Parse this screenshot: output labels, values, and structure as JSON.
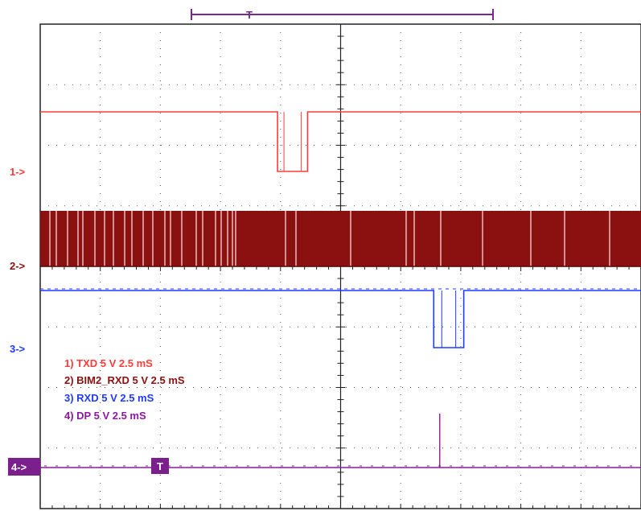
{
  "chart_data": {
    "type": "line",
    "title": "",
    "grid": true,
    "x_divisions": 10,
    "y_divisions": 8,
    "time_per_div": "2.5 mS",
    "channels": [
      {
        "id": 1,
        "marker": "1->",
        "legend": "1) TXD  5  V   2.5 mS",
        "color": "#ff3b3b",
        "trace": "high with one low pulse before trigger",
        "pulse": [
          {
            "start_div": 3.95,
            "end_div": 4.45
          }
        ]
      },
      {
        "id": 2,
        "marker": "2->",
        "legend": "2) BIM2_RXD  5  V   2.5 mS",
        "color": "#8b1010",
        "trace": "continuous high-frequency square wave (dense band)"
      },
      {
        "id": 3,
        "marker": "3->",
        "legend": "3) RXD  5  V   2.5 mS",
        "color": "#1f3bff",
        "trace": "high with one low pulse after center",
        "pulse": [
          {
            "start_div": 6.55,
            "end_div": 7.05
          }
        ]
      },
      {
        "id": 4,
        "marker": "4->",
        "legend": "4) DP  5  V   2.5 mS",
        "color": "#8b1aa0",
        "trace": "low baseline with a single narrow spike",
        "spike_div": 6.65
      }
    ],
    "trigger_marker": "T",
    "timebase_marker": "T"
  }
}
